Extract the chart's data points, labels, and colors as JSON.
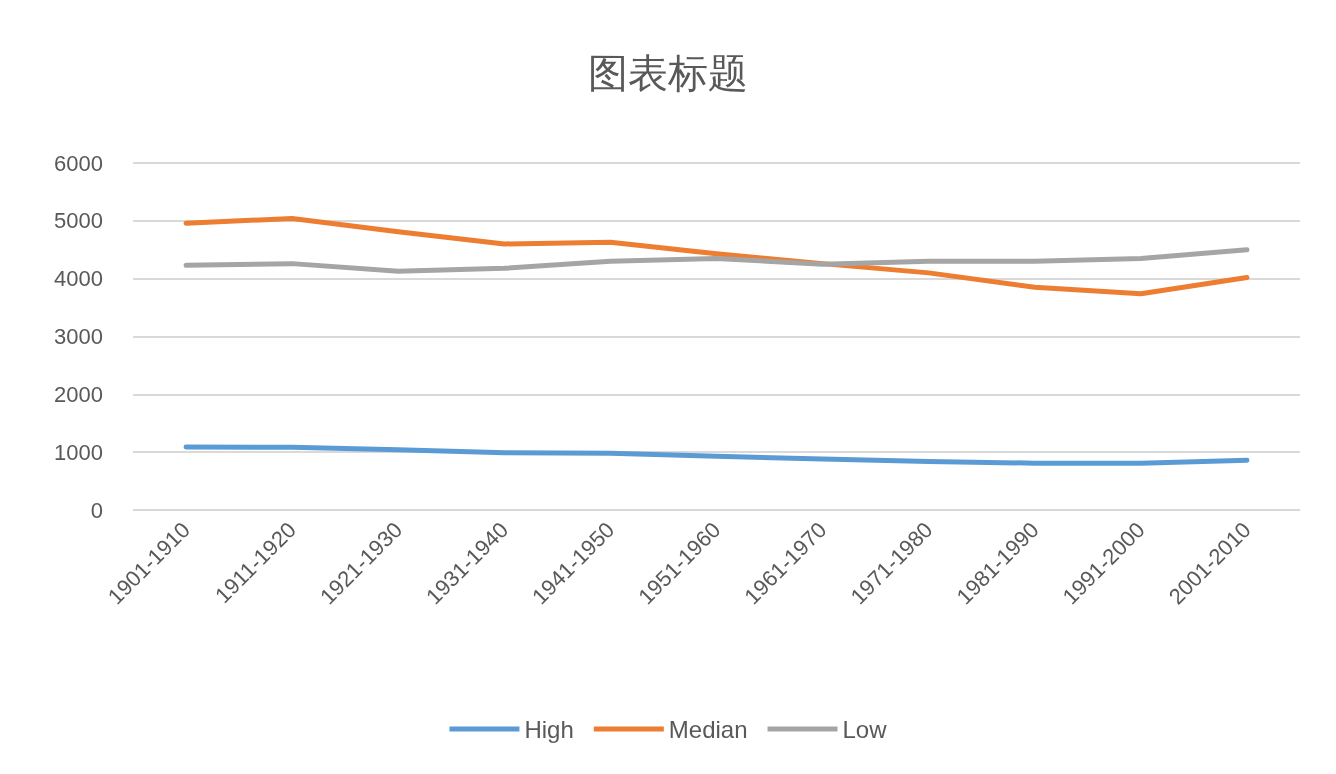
{
  "chart_data": {
    "type": "line",
    "title": "图表标题",
    "categories": [
      "1901-1910",
      "1911-1920",
      "1921-1930",
      "1931-1940",
      "1941-1950",
      "1951-1960",
      "1961-1970",
      "1971-1980",
      "1981-1990",
      "1991-2000",
      "2001-2010"
    ],
    "series": [
      {
        "name": "High",
        "color": "#5b9bd5",
        "values": [
          1090,
          1085,
          1040,
          990,
          980,
          930,
          880,
          840,
          810,
          810,
          860
        ]
      },
      {
        "name": "Median",
        "color": "#ed7d31",
        "values": [
          4960,
          5040,
          4810,
          4600,
          4630,
          4430,
          4260,
          4100,
          3850,
          3740,
          4020
        ]
      },
      {
        "name": "Low",
        "color": "#a5a5a5",
        "values": [
          4230,
          4260,
          4130,
          4180,
          4300,
          4350,
          4250,
          4300,
          4300,
          4350,
          4500
        ]
      }
    ],
    "ylim": [
      0,
      6000
    ],
    "yticks": [
      0,
      1000,
      2000,
      3000,
      4000,
      5000,
      6000
    ],
    "grid": "y",
    "legend": "bottom",
    "marker": "none",
    "line_style": "solid"
  }
}
